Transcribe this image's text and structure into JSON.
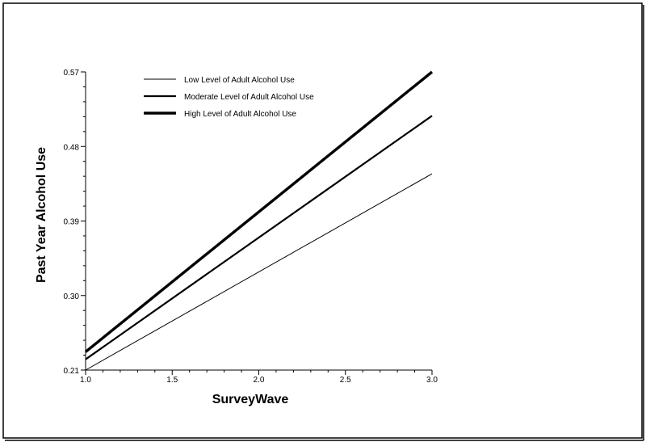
{
  "chart_data": {
    "type": "line",
    "title": "",
    "xlabel": "SurveyWave",
    "ylabel": "Past Year Alcohol Use",
    "xlim": [
      1.0,
      3.0
    ],
    "ylim": [
      0.21,
      0.57
    ],
    "x_ticks": [
      "1.0",
      "1.5",
      "2.0",
      "2.5",
      "3.0"
    ],
    "y_ticks": [
      "0.21",
      "0.30",
      "0.39",
      "0.48",
      "0.57"
    ],
    "legend_position": "top-left",
    "grid": false,
    "series": [
      {
        "name": "Low Level of Adult Alcohol Use",
        "x": [
          1.0,
          3.0
        ],
        "y": [
          0.21,
          0.447
        ],
        "line_weight": "thin",
        "color": "#000000"
      },
      {
        "name": "Moderate Level of Adult Alcohol Use",
        "x": [
          1.0,
          3.0
        ],
        "y": [
          0.223,
          0.517
        ],
        "line_weight": "medium",
        "color": "#000000"
      },
      {
        "name": "High Level of Adult Alcohol Use",
        "x": [
          1.0,
          3.0
        ],
        "y": [
          0.232,
          0.57
        ],
        "line_weight": "thick",
        "color": "#000000"
      }
    ]
  }
}
